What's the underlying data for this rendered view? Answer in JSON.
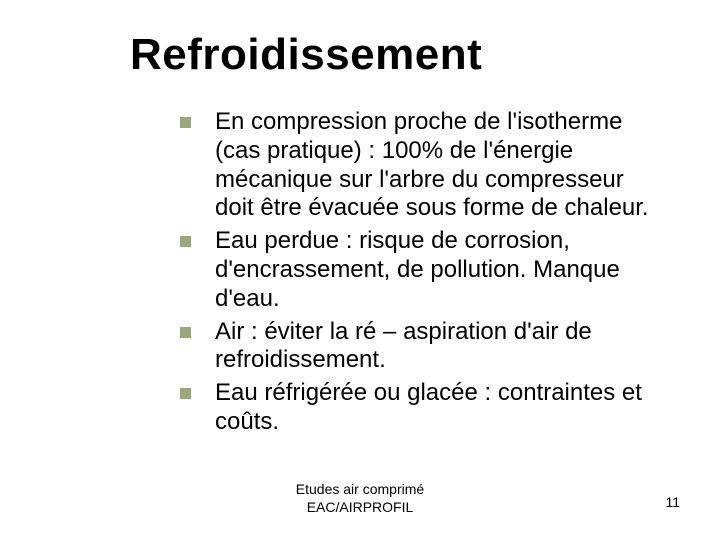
{
  "title": "Refroidissement",
  "title_fontsize": 44,
  "title_fontweight": "bold",
  "bullets": [
    "En compression proche de l'isotherme (cas pratique) : 100% de l'énergie mécanique sur l'arbre du compresseur doit être évacuée sous forme de chaleur.",
    "Eau perdue : risque de corrosion, d'encrassement, de pollution. Manque d'eau.",
    "Air : éviter la ré – aspiration d'air de refroidissement.",
    "Eau réfrigérée ou glacée : contraintes et coûts."
  ],
  "bullet_fontsize": 24,
  "bullet_marker_color": "#9aa77f",
  "bullet_marker_size": 11,
  "footer": {
    "line1": "Etudes air comprimé",
    "line2": "EAC/AIRPROFIL"
  },
  "footer_fontsize": 14,
  "page_number": "11",
  "background_color": "#ffffff",
  "text_color": "#000000"
}
